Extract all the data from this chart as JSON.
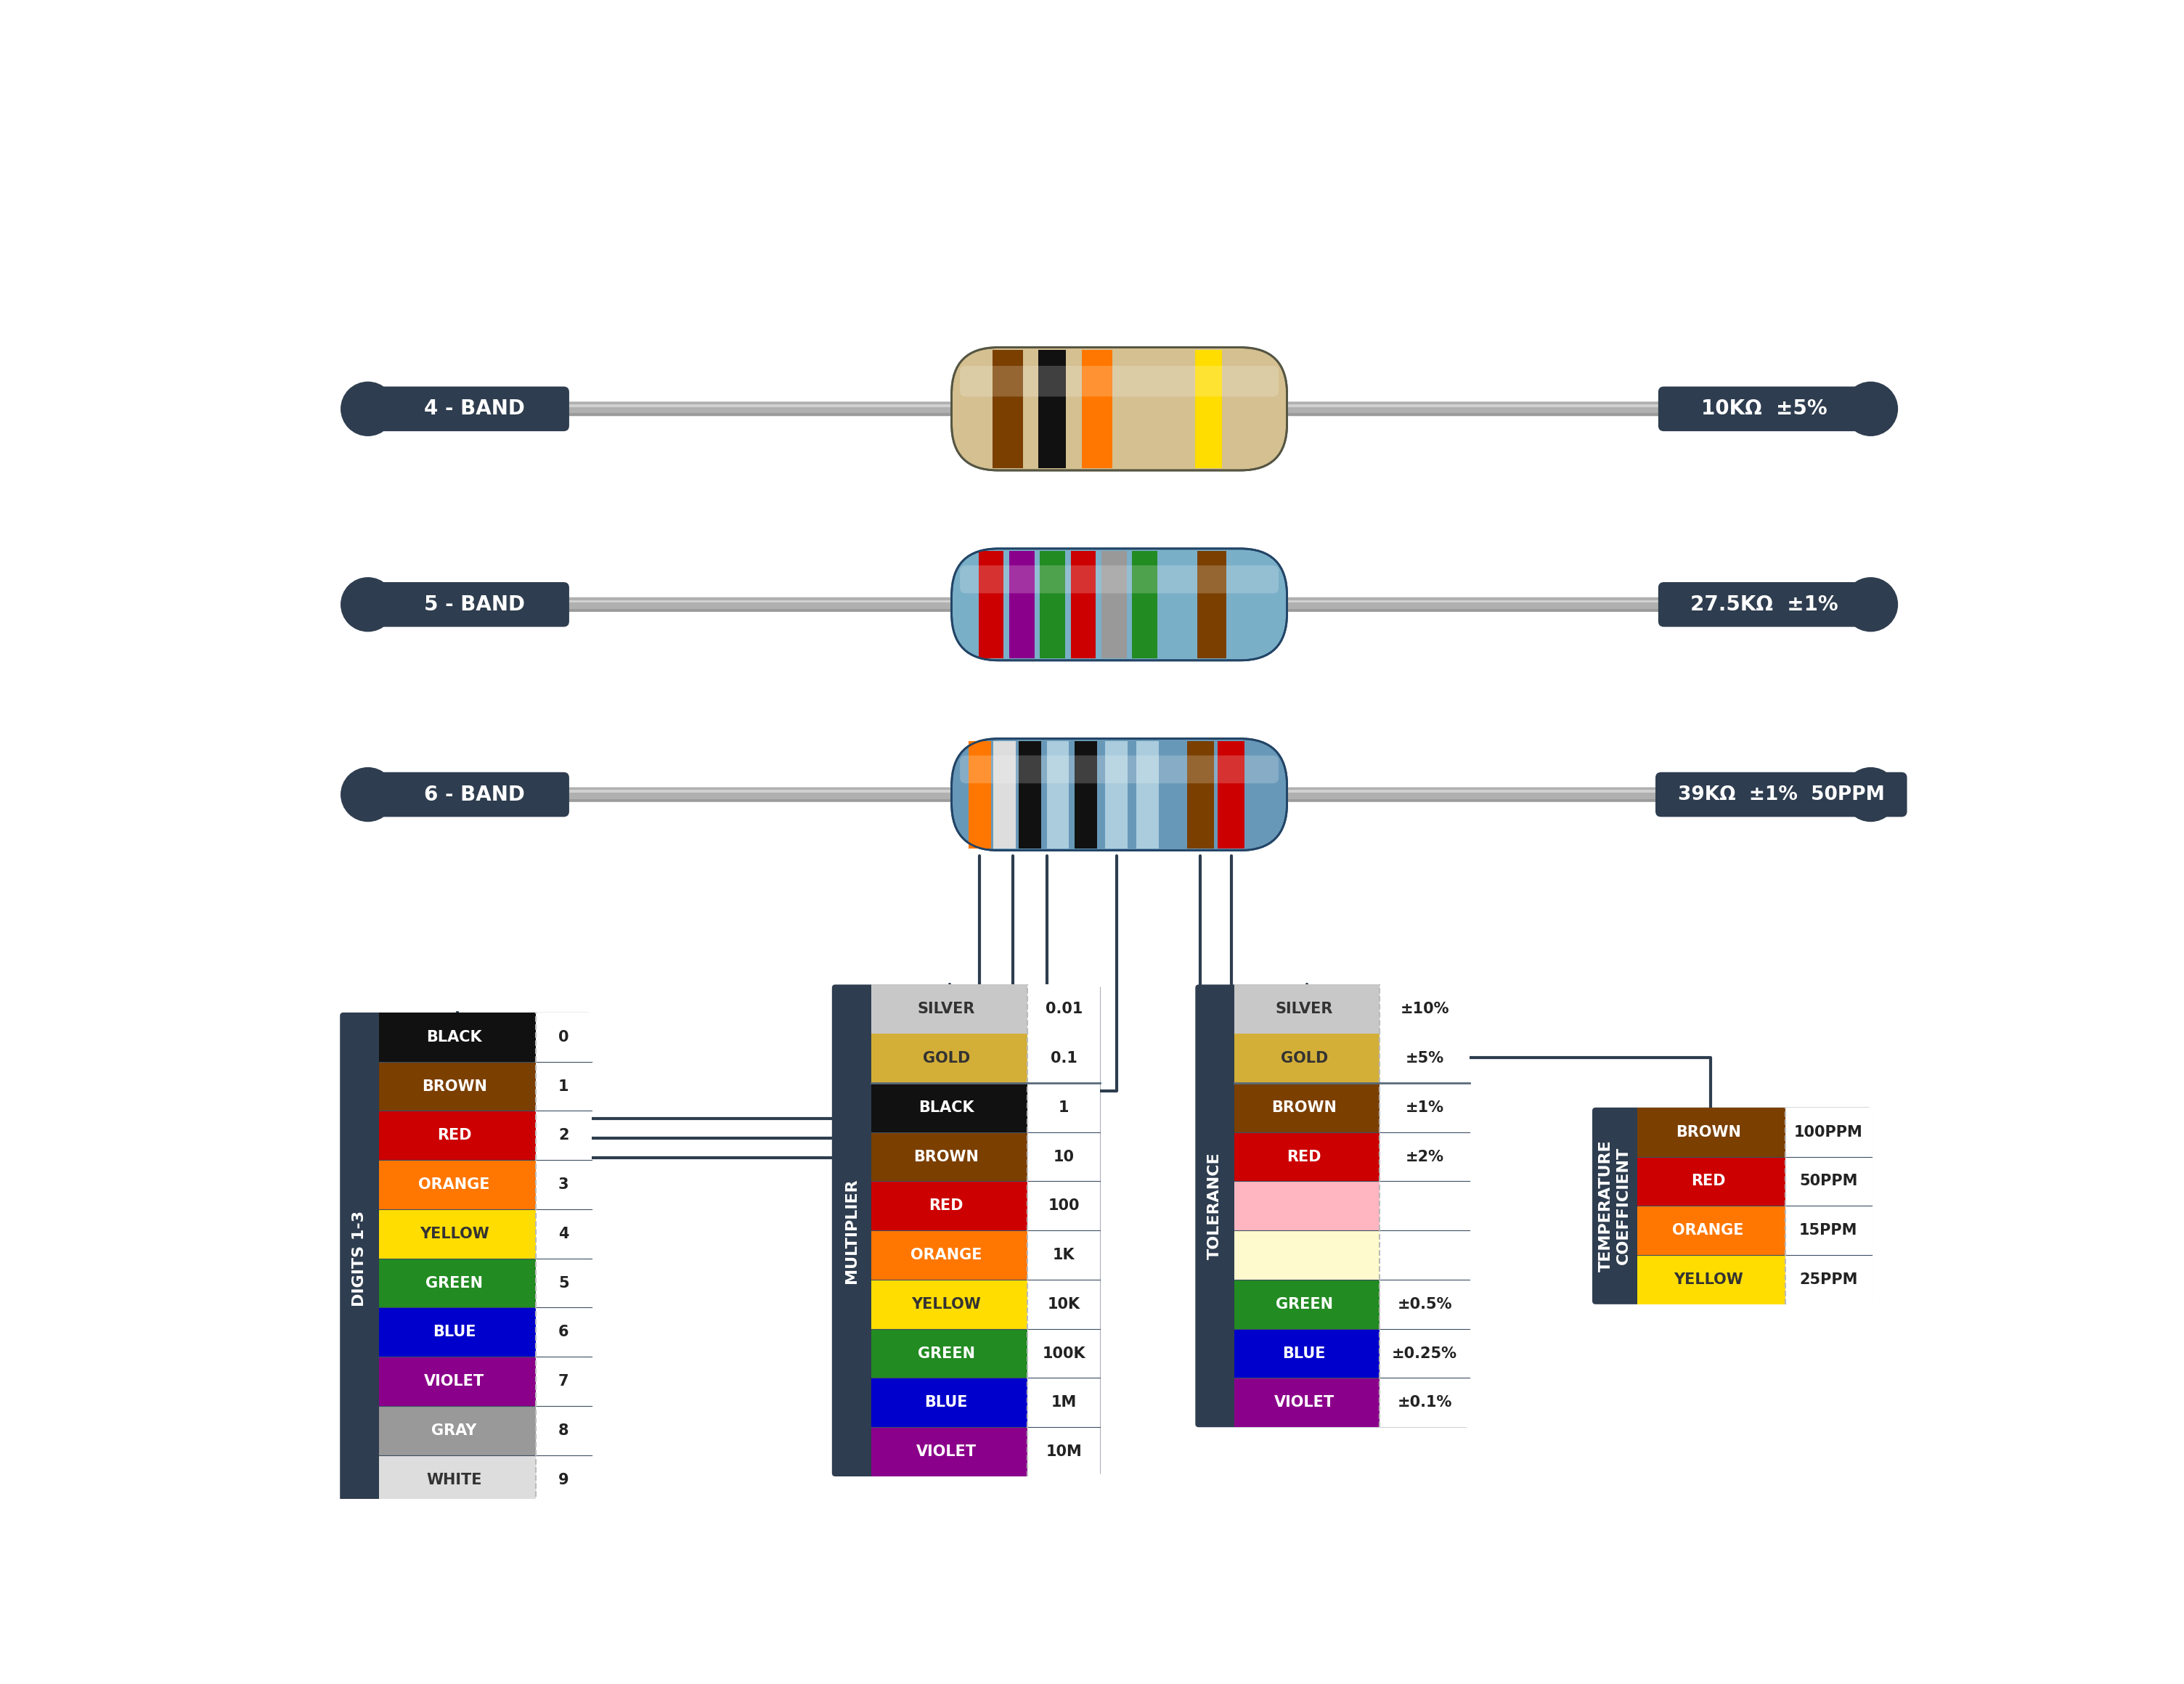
{
  "bg_color": "#ffffff",
  "dark_bg": "#2e3d4f",
  "band4_label": "4 - BAND",
  "band5_label": "5 - BAND",
  "band6_label": "6 - BAND",
  "band4_value": "10KΩ  ±5%",
  "band5_value": "27.5KΩ  ±1%",
  "band6_value": "39KΩ  ±1%  50PPM",
  "digits_table": {
    "rows": [
      {
        "hex": "#111111",
        "name": "BLACK",
        "value": "0",
        "text_color": "#ffffff"
      },
      {
        "hex": "#7B3F00",
        "name": "BROWN",
        "value": "1",
        "text_color": "#ffffff"
      },
      {
        "hex": "#CC0000",
        "name": "RED",
        "value": "2",
        "text_color": "#ffffff"
      },
      {
        "hex": "#FF7700",
        "name": "ORANGE",
        "value": "3",
        "text_color": "#ffffff"
      },
      {
        "hex": "#FFDD00",
        "name": "YELLOW",
        "value": "4",
        "text_color": "#333333"
      },
      {
        "hex": "#228B22",
        "name": "GREEN",
        "value": "5",
        "text_color": "#ffffff"
      },
      {
        "hex": "#0000CC",
        "name": "BLUE",
        "value": "6",
        "text_color": "#ffffff"
      },
      {
        "hex": "#8B008B",
        "name": "VIOLET",
        "value": "7",
        "text_color": "#ffffff"
      },
      {
        "hex": "#999999",
        "name": "GRAY",
        "value": "8",
        "text_color": "#ffffff"
      },
      {
        "hex": "#dddddd",
        "name": "WHITE",
        "value": "9",
        "text_color": "#333333"
      }
    ],
    "label": "DIGITS 1-3"
  },
  "multiplier_table": {
    "top_rows": [
      {
        "hex": "#C8C8C8",
        "name": "SILVER",
        "value": "0.01",
        "text_color": "#333333"
      },
      {
        "hex": "#D4AF37",
        "name": "GOLD",
        "value": "0.1",
        "text_color": "#333333"
      }
    ],
    "rows": [
      {
        "hex": "#111111",
        "name": "BLACK",
        "value": "1",
        "text_color": "#ffffff"
      },
      {
        "hex": "#7B3F00",
        "name": "BROWN",
        "value": "10",
        "text_color": "#ffffff"
      },
      {
        "hex": "#CC0000",
        "name": "RED",
        "value": "100",
        "text_color": "#ffffff"
      },
      {
        "hex": "#FF7700",
        "name": "ORANGE",
        "value": "1K",
        "text_color": "#ffffff"
      },
      {
        "hex": "#FFDD00",
        "name": "YELLOW",
        "value": "10K",
        "text_color": "#333333"
      },
      {
        "hex": "#228B22",
        "name": "GREEN",
        "value": "100K",
        "text_color": "#ffffff"
      },
      {
        "hex": "#0000CC",
        "name": "BLUE",
        "value": "1M",
        "text_color": "#ffffff"
      },
      {
        "hex": "#8B008B",
        "name": "VIOLET",
        "value": "10M",
        "text_color": "#ffffff"
      }
    ],
    "label": "MULTIPLIER"
  },
  "tolerance_table": {
    "top_rows": [
      {
        "hex": "#C8C8C8",
        "name": "SILVER",
        "value": "±10%",
        "text_color": "#333333"
      },
      {
        "hex": "#D4AF37",
        "name": "GOLD",
        "value": "±5%",
        "text_color": "#333333"
      }
    ],
    "rows": [
      {
        "hex": "#7B3F00",
        "name": "BROWN",
        "value": "±1%",
        "text_color": "#ffffff"
      },
      {
        "hex": "#CC0000",
        "name": "RED",
        "value": "±2%",
        "text_color": "#ffffff"
      },
      {
        "hex": "#FFB6C1",
        "name": "",
        "value": "",
        "text_color": "#333333"
      },
      {
        "hex": "#FFFACD",
        "name": "",
        "value": "",
        "text_color": "#333333"
      },
      {
        "hex": "#228B22",
        "name": "GREEN",
        "value": "±0.5%",
        "text_color": "#ffffff"
      },
      {
        "hex": "#0000CC",
        "name": "BLUE",
        "value": "±0.25%",
        "text_color": "#ffffff"
      },
      {
        "hex": "#8B008B",
        "name": "VIOLET",
        "value": "±0.1%",
        "text_color": "#ffffff"
      }
    ],
    "label": "TOLERANCE"
  },
  "temp_table": {
    "rows": [
      {
        "hex": "#7B3F00",
        "name": "BROWN",
        "value": "100PPM",
        "text_color": "#ffffff"
      },
      {
        "hex": "#CC0000",
        "name": "RED",
        "value": "50PPM",
        "text_color": "#ffffff"
      },
      {
        "hex": "#FF7700",
        "name": "ORANGE",
        "value": "15PPM",
        "text_color": "#ffffff"
      },
      {
        "hex": "#FFDD00",
        "name": "YELLOW",
        "value": "25PPM",
        "text_color": "#333333"
      }
    ],
    "label": "TEMPERATURE\nCOEFFICIENT"
  }
}
